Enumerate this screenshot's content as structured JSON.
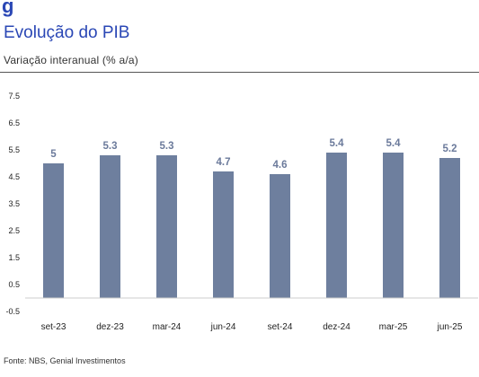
{
  "logo_text": "g",
  "header": {
    "title": "Evolução do PIB",
    "subtitle": "Variação interanual (% a/a)"
  },
  "footer": {
    "source": "Fonte: NBS, Genial Investimentos"
  },
  "colors": {
    "bar": "#6e7f9e",
    "title": "#2a47b5",
    "label": "#6b7a9b"
  },
  "chart_data": {
    "type": "bar",
    "categories": [
      "set-23",
      "dez-23",
      "mar-24",
      "jun-24",
      "set-24",
      "dez-24",
      "mar-25",
      "jun-25"
    ],
    "values": [
      5.0,
      5.3,
      5.3,
      4.7,
      4.6,
      5.4,
      5.4,
      5.2
    ],
    "value_labels": [
      "5",
      "5.3",
      "5.3",
      "4.7",
      "4.6",
      "5.4",
      "5.4",
      "5.2"
    ],
    "ylim": [
      -0.5,
      7.5
    ],
    "yticks": [
      -0.5,
      0.5,
      1.5,
      2.5,
      3.5,
      4.5,
      5.5,
      6.5,
      7.5
    ],
    "ytick_labels": [
      "-0.5",
      "0.5",
      "1.5",
      "2.5",
      "3.5",
      "4.5",
      "5.5",
      "6.5",
      "7.5"
    ],
    "grid": false,
    "legend": "none"
  }
}
